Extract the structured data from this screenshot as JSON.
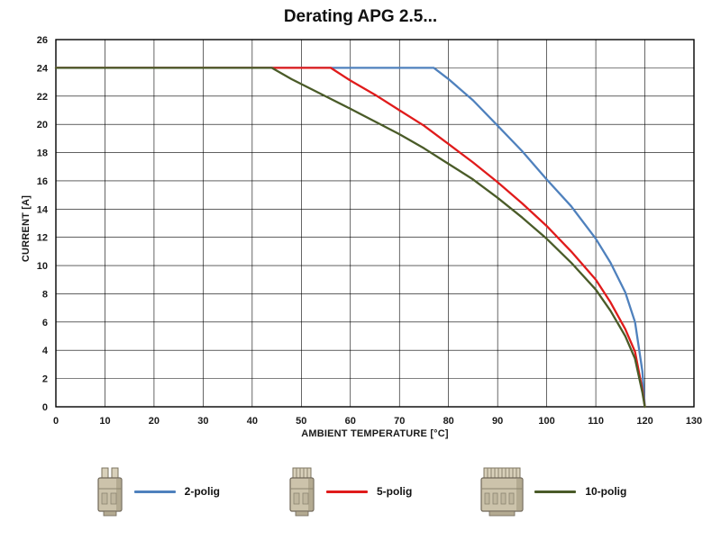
{
  "chart_data": {
    "type": "line",
    "title": "Derating APG 2.5...",
    "xlabel": "AMBIENT TEMPERATURE [°C]",
    "ylabel": "CURRENT [A]",
    "xlim": [
      0,
      130
    ],
    "ylim": [
      0,
      26
    ],
    "x_ticks": [
      0,
      10,
      20,
      30,
      40,
      50,
      60,
      70,
      80,
      90,
      100,
      110,
      120,
      130
    ],
    "y_ticks": [
      0,
      2,
      4,
      6,
      8,
      10,
      12,
      14,
      16,
      18,
      20,
      22,
      24,
      26
    ],
    "grid": true,
    "grid_color": "#000000",
    "legend_position": "bottom",
    "series": [
      {
        "name": "2-polig",
        "color": "#4F81BD",
        "points": [
          [
            0,
            24
          ],
          [
            40,
            24
          ],
          [
            77,
            24
          ],
          [
            80,
            23.2
          ],
          [
            85,
            21.7
          ],
          [
            90,
            19.9
          ],
          [
            95,
            18.1
          ],
          [
            100,
            16.1
          ],
          [
            105,
            14.2
          ],
          [
            110,
            11.9
          ],
          [
            113,
            10.2
          ],
          [
            116,
            8.1
          ],
          [
            118,
            6.0
          ],
          [
            119.5,
            2.5
          ],
          [
            120,
            0
          ]
        ]
      },
      {
        "name": "5-polig",
        "color": "#E01B1B",
        "points": [
          [
            0,
            24
          ],
          [
            44,
            24
          ],
          [
            56,
            24
          ],
          [
            60,
            23.1
          ],
          [
            65,
            22.1
          ],
          [
            70,
            21.0
          ],
          [
            75,
            19.9
          ],
          [
            80,
            18.6
          ],
          [
            85,
            17.3
          ],
          [
            90,
            15.9
          ],
          [
            95,
            14.4
          ],
          [
            100,
            12.8
          ],
          [
            105,
            11.0
          ],
          [
            110,
            9.0
          ],
          [
            113,
            7.4
          ],
          [
            116,
            5.5
          ],
          [
            118,
            3.9
          ],
          [
            119.5,
            1.2
          ],
          [
            120,
            0
          ]
        ]
      },
      {
        "name": "10-polig",
        "color": "#4A5B28",
        "points": [
          [
            0,
            24
          ],
          [
            44,
            24
          ],
          [
            48,
            23.2
          ],
          [
            52,
            22.5
          ],
          [
            56,
            21.8
          ],
          [
            60,
            21.1
          ],
          [
            65,
            20.2
          ],
          [
            70,
            19.3
          ],
          [
            75,
            18.3
          ],
          [
            80,
            17.2
          ],
          [
            85,
            16.1
          ],
          [
            90,
            14.8
          ],
          [
            95,
            13.4
          ],
          [
            100,
            11.9
          ],
          [
            105,
            10.2
          ],
          [
            110,
            8.3
          ],
          [
            113,
            6.8
          ],
          [
            116,
            5.0
          ],
          [
            118,
            3.4
          ],
          [
            119.5,
            1.0
          ],
          [
            120,
            0
          ]
        ]
      }
    ]
  },
  "legend": {
    "items": [
      {
        "label": "2-polig"
      },
      {
        "label": "5-polig"
      },
      {
        "label": "10-polig"
      }
    ]
  }
}
